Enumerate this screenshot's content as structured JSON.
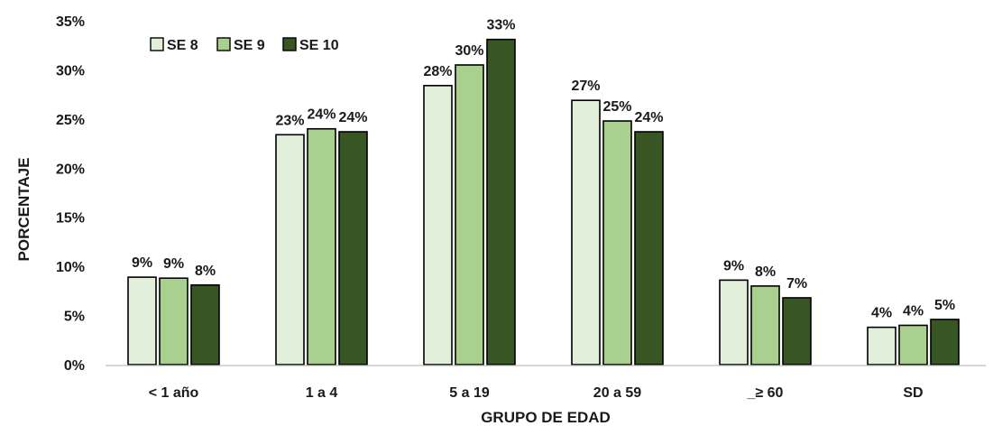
{
  "chart_data": {
    "type": "bar",
    "categories": [
      "< 1 año",
      "1 a 4",
      "5 a 19",
      "20 a 59",
      "_≥ 60",
      "SD"
    ],
    "series": [
      {
        "name": "SE 8",
        "color": "#e2efda",
        "values": [
          8.9,
          23.4,
          28.4,
          26.9,
          8.6,
          3.8
        ],
        "labels": [
          "9%",
          "23%",
          "28%",
          "27%",
          "9%",
          "4%"
        ]
      },
      {
        "name": "SE 9",
        "color": "#a9d08e",
        "values": [
          8.8,
          24.0,
          30.5,
          24.8,
          8.0,
          4.0
        ],
        "labels": [
          "9%",
          "24%",
          "30%",
          "25%",
          "8%",
          "4%"
        ]
      },
      {
        "name": "SE 10",
        "color": "#375623",
        "values": [
          8.1,
          23.7,
          33.1,
          23.7,
          6.8,
          4.6
        ],
        "labels": [
          "8%",
          "24%",
          "33%",
          "24%",
          "7%",
          "5%"
        ]
      }
    ],
    "xlabel": "GRUPO DE EDAD",
    "ylabel": "PORCENTAJE",
    "ylim": [
      0,
      35
    ],
    "yticks": [
      "0%",
      "5%",
      "10%",
      "15%",
      "20%",
      "25%",
      "30%",
      "35%"
    ],
    "grid": false,
    "legend_position": "top-left"
  }
}
